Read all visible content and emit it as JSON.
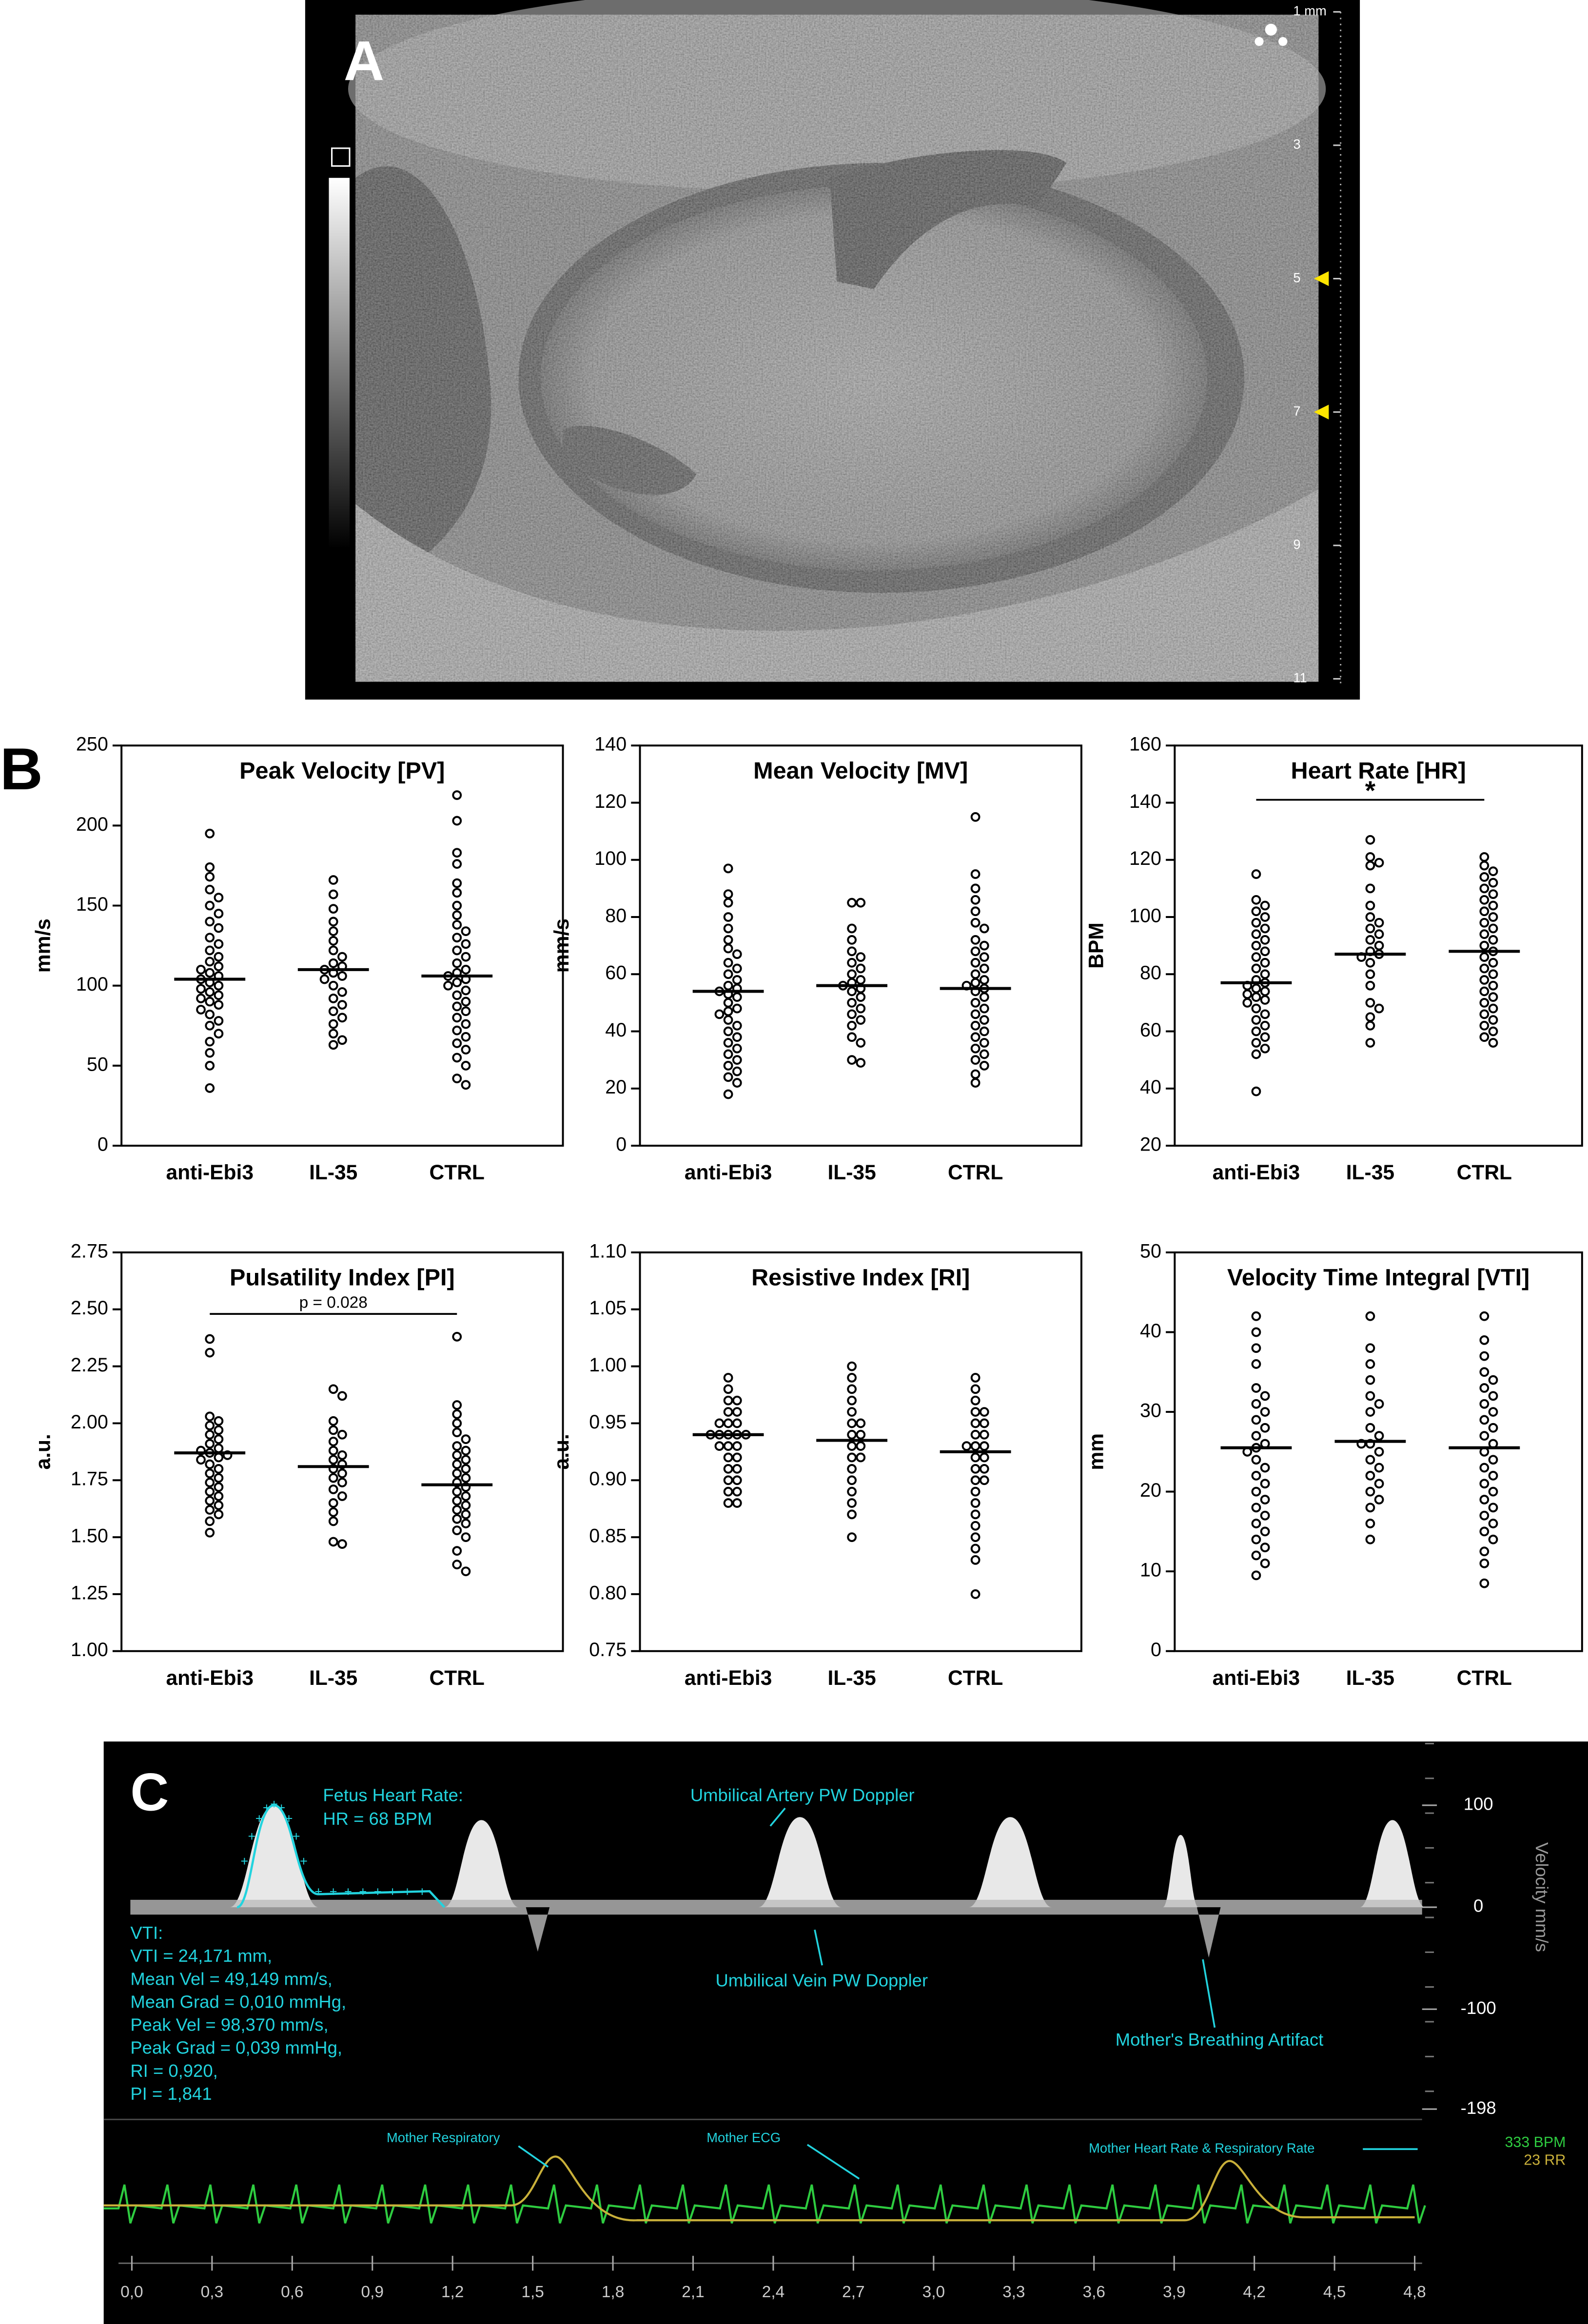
{
  "panel_labels": [
    "A",
    "B",
    "C"
  ],
  "ultrasound": {
    "depth_labels": [
      "1 mm",
      "3",
      "5",
      "7",
      "9",
      "11"
    ]
  },
  "chart_data": [
    {
      "type": "dot",
      "title": "Peak Velocity [PV]",
      "ylabel": "mm/s",
      "categories": [
        "anti-Ebi3",
        "IL-35",
        "CTRL"
      ],
      "ylim": [
        0,
        250
      ],
      "yticks": [
        0,
        50,
        100,
        150,
        200,
        250
      ],
      "values": [
        [
          195,
          174,
          168,
          160,
          155,
          150,
          145,
          140,
          136,
          130,
          126,
          122,
          118,
          115,
          112,
          110,
          108,
          106,
          104,
          102,
          100,
          98,
          96,
          94,
          92,
          90,
          88,
          85,
          82,
          78,
          75,
          70,
          65,
          58,
          50,
          36
        ],
        [
          166,
          157,
          148,
          140,
          134,
          128,
          122,
          118,
          114,
          112,
          110,
          108,
          106,
          104,
          100,
          96,
          92,
          88,
          84,
          80,
          76,
          70,
          66,
          63
        ],
        [
          219,
          203,
          183,
          176,
          164,
          158,
          150,
          144,
          138,
          134,
          130,
          126,
          122,
          118,
          114,
          110,
          108,
          106,
          104,
          102,
          100,
          97,
          94,
          90,
          87,
          84,
          80,
          76,
          72,
          68,
          64,
          60,
          55,
          50,
          42,
          38
        ]
      ],
      "center_lines": [
        104,
        110,
        106
      ]
    },
    {
      "type": "dot",
      "title": "Mean Velocity [MV]",
      "ylabel": "mm/s",
      "categories": [
        "anti-Ebi3",
        "IL-35",
        "CTRL"
      ],
      "ylim": [
        0,
        140
      ],
      "yticks": [
        0,
        20,
        40,
        60,
        80,
        100,
        120,
        140
      ],
      "values": [
        [
          97,
          88,
          85,
          80,
          76,
          72,
          69,
          67,
          64,
          62,
          60,
          58,
          56,
          55,
          54,
          53,
          52,
          50,
          48,
          47,
          46,
          44,
          42,
          40,
          38,
          36,
          34,
          32,
          30,
          28,
          26,
          24,
          22,
          18
        ],
        [
          85,
          85,
          76,
          72,
          68,
          66,
          64,
          62,
          60,
          58,
          57,
          56,
          55,
          54,
          52,
          50,
          48,
          46,
          44,
          42,
          38,
          36,
          30,
          29
        ],
        [
          115,
          95,
          90,
          86,
          82,
          78,
          76,
          72,
          70,
          68,
          66,
          64,
          62,
          60,
          58,
          57,
          56,
          55,
          54,
          52,
          50,
          48,
          46,
          44,
          42,
          40,
          38,
          36,
          34,
          32,
          30,
          28,
          25,
          22
        ]
      ],
      "center_lines": [
        54,
        56,
        55
      ]
    },
    {
      "type": "dot",
      "title": "Heart Rate [HR]",
      "ylabel": "BPM",
      "categories": [
        "anti-Ebi3",
        "IL-35",
        "CTRL"
      ],
      "ylim": [
        20,
        160
      ],
      "yticks": [
        20,
        40,
        60,
        80,
        100,
        120,
        140,
        160
      ],
      "values": [
        [
          115,
          106,
          104,
          102,
          100,
          98,
          96,
          94,
          92,
          90,
          88,
          86,
          84,
          82,
          80,
          78,
          77,
          76,
          75,
          74,
          73,
          72,
          71,
          70,
          68,
          66,
          64,
          62,
          60,
          58,
          56,
          54,
          52,
          39
        ],
        [
          127,
          121,
          119,
          118,
          110,
          104,
          100,
          98,
          96,
          94,
          92,
          90,
          88,
          87,
          86,
          84,
          80,
          76,
          70,
          68,
          65,
          62,
          56
        ],
        [
          121,
          118,
          116,
          114,
          112,
          110,
          108,
          106,
          104,
          102,
          100,
          98,
          96,
          94,
          92,
          90,
          88,
          86,
          84,
          82,
          80,
          78,
          76,
          74,
          72,
          70,
          68,
          66,
          64,
          62,
          60,
          58,
          56
        ]
      ],
      "center_lines": [
        77,
        87,
        88
      ],
      "annotation": {
        "text": "*",
        "from": 0,
        "to": 2,
        "y": 141
      }
    },
    {
      "type": "dot",
      "title": "Pulsatility Index [PI]",
      "ylabel": "a.u.",
      "categories": [
        "anti-Ebi3",
        "IL-35",
        "CTRL"
      ],
      "ylim": [
        1,
        2.75
      ],
      "yticks": [
        {
          "value": 1,
          "label": "1.00"
        },
        {
          "value": 1.25,
          "label": "1.25"
        },
        {
          "value": 1.5,
          "label": "1.50"
        },
        {
          "value": 1.75,
          "label": "1.75"
        },
        {
          "value": 2,
          "label": "2.00"
        },
        {
          "value": 2.25,
          "label": "2.25"
        },
        {
          "value": 2.5,
          "label": "2.50"
        },
        {
          "value": 2.75,
          "label": "2.75"
        }
      ],
      "values": [
        [
          2.37,
          2.31,
          2.03,
          2.01,
          1.99,
          1.97,
          1.95,
          1.93,
          1.91,
          1.89,
          1.88,
          1.87,
          1.86,
          1.85,
          1.84,
          1.82,
          1.8,
          1.78,
          1.76,
          1.74,
          1.72,
          1.7,
          1.68,
          1.66,
          1.64,
          1.62,
          1.6,
          1.57,
          1.52
        ],
        [
          2.15,
          2.12,
          2.01,
          1.97,
          1.95,
          1.92,
          1.88,
          1.86,
          1.84,
          1.82,
          1.8,
          1.78,
          1.76,
          1.74,
          1.71,
          1.68,
          1.65,
          1.61,
          1.57,
          1.48,
          1.47
        ],
        [
          2.38,
          2.08,
          2.04,
          2,
          1.96,
          1.93,
          1.9,
          1.88,
          1.86,
          1.84,
          1.82,
          1.8,
          1.78,
          1.76,
          1.74,
          1.72,
          1.7,
          1.68,
          1.66,
          1.64,
          1.62,
          1.6,
          1.58,
          1.56,
          1.53,
          1.5,
          1.44,
          1.38,
          1.35
        ]
      ],
      "center_lines": [
        1.87,
        1.81,
        1.73
      ],
      "annotation": {
        "text": "p = 0.028",
        "from": 0,
        "to": 2,
        "y": 2.48
      }
    },
    {
      "type": "dot",
      "title": "Resistive Index [RI]",
      "ylabel": "a.u.",
      "categories": [
        "anti-Ebi3",
        "IL-35",
        "CTRL"
      ],
      "ylim": [
        0.75,
        1.1
      ],
      "yticks": [
        {
          "value": 0.75,
          "label": "0.75"
        },
        {
          "value": 0.8,
          "label": "0.80"
        },
        {
          "value": 0.85,
          "label": "0.85"
        },
        {
          "value": 0.9,
          "label": "0.90"
        },
        {
          "value": 0.95,
          "label": "0.95"
        },
        {
          "value": 1,
          "label": "1.00"
        },
        {
          "value": 1.05,
          "label": "1.05"
        },
        {
          "value": 1.1,
          "label": "1.10"
        }
      ],
      "values": [
        [
          0.99,
          0.98,
          0.97,
          0.97,
          0.96,
          0.96,
          0.95,
          0.95,
          0.95,
          0.94,
          0.94,
          0.94,
          0.94,
          0.94,
          0.93,
          0.93,
          0.93,
          0.92,
          0.92,
          0.91,
          0.91,
          0.9,
          0.9,
          0.89,
          0.89,
          0.88,
          0.88
        ],
        [
          1,
          0.99,
          0.98,
          0.97,
          0.96,
          0.95,
          0.95,
          0.94,
          0.94,
          0.93,
          0.93,
          0.92,
          0.92,
          0.91,
          0.9,
          0.89,
          0.88,
          0.87,
          0.85
        ],
        [
          0.99,
          0.98,
          0.97,
          0.96,
          0.96,
          0.95,
          0.95,
          0.94,
          0.94,
          0.93,
          0.93,
          0.93,
          0.92,
          0.92,
          0.91,
          0.91,
          0.9,
          0.9,
          0.89,
          0.88,
          0.87,
          0.86,
          0.85,
          0.84,
          0.83,
          0.8
        ]
      ],
      "center_lines": [
        0.94,
        0.935,
        0.925
      ]
    },
    {
      "type": "dot",
      "title": "Velocity Time Integral [VTI]",
      "ylabel": "mm",
      "categories": [
        "anti-Ebi3",
        "IL-35",
        "CTRL"
      ],
      "ylim": [
        0,
        50
      ],
      "yticks": [
        0,
        10,
        20,
        30,
        40,
        50
      ],
      "values": [
        [
          42,
          40,
          38,
          36,
          33,
          32,
          31,
          30,
          29,
          28,
          27,
          26,
          25.5,
          25,
          24,
          23,
          22,
          21,
          20,
          19,
          18,
          17,
          16,
          15,
          14,
          13,
          12,
          11,
          9.5
        ],
        [
          42,
          38,
          36,
          34,
          32,
          31,
          30,
          28,
          27,
          26,
          26,
          25,
          24,
          23,
          22,
          21,
          20,
          19,
          18,
          16,
          14
        ],
        [
          42,
          39,
          37,
          35,
          34,
          33,
          32,
          31,
          30,
          29,
          28,
          27,
          26,
          25,
          24,
          23,
          22,
          21,
          20,
          19,
          18,
          17,
          16,
          15,
          14,
          12.5,
          11,
          8.5
        ]
      ],
      "center_lines": [
        25.5,
        26.3,
        25.5
      ]
    },
    {
      "type": "doppler",
      "ylabel": "Velocity mm/s",
      "ylim": [
        -198,
        100
      ],
      "yticks": [
        100,
        0,
        -100,
        -198
      ],
      "xlim": [
        0,
        4.8
      ],
      "xticks": [
        {
          "value": 0,
          "label": "0,0"
        },
        {
          "value": 0.3,
          "label": "0,3"
        },
        {
          "value": 0.6,
          "label": "0,6"
        },
        {
          "value": 0.9,
          "label": "0,9"
        },
        {
          "value": 1.2,
          "label": "1,2"
        },
        {
          "value": 1.5,
          "label": "1,5"
        },
        {
          "value": 1.8,
          "label": "1,8"
        },
        {
          "value": 2.1,
          "label": "2,1"
        },
        {
          "value": 2.4,
          "label": "2,4"
        },
        {
          "value": 2.7,
          "label": "2,7"
        },
        {
          "value": 3,
          "label": "3,0"
        },
        {
          "value": 3.3,
          "label": "3,3"
        },
        {
          "value": 3.6,
          "label": "3,6"
        },
        {
          "value": 3.9,
          "label": "3,9"
        },
        {
          "value": 4.2,
          "label": "4,2"
        },
        {
          "value": 4.5,
          "label": "4,5"
        },
        {
          "value": 4.8,
          "label": "4,8"
        }
      ],
      "heart_rate": [
        "Fetus Heart Rate:",
        "HR = 68 BPM"
      ],
      "annotations": [
        "Umbilical Artery PW Doppler",
        "Umbilical Vein PW Doppler",
        "Mother's Breathing Artifact",
        "Mother Respiratory",
        "Mother ECG",
        "Mother Heart Rate & Respiratory Rate"
      ],
      "measurements": [
        "VTI:",
        "VTI = 24,171 mm,",
        "Mean Vel = 49,149 mm/s,",
        "Mean Grad = 0,010 mmHg,",
        "Peak Vel = 98,370 mm/s,",
        "Peak Grad = 0,039 mmHg,",
        "RI = 0,920,",
        "PI = 1,841"
      ],
      "readouts": [
        "333 BPM",
        "23 RR"
      ]
    }
  ]
}
